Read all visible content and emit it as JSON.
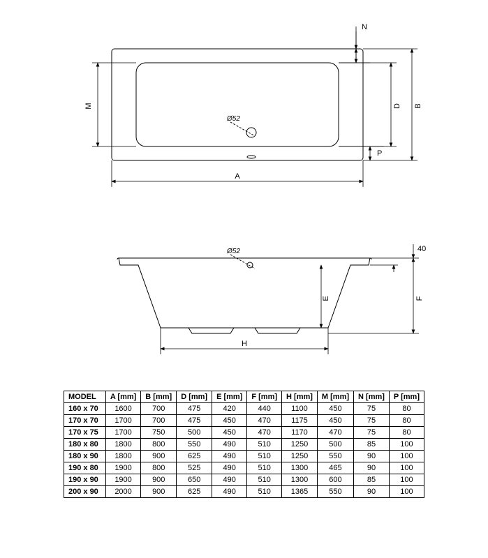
{
  "diagram": {
    "line_color": "#000000",
    "line_width": 1,
    "background_color": "#ffffff",
    "text_color": "#000000",
    "font_size_label": 11,
    "dim_labels": {
      "A": "A",
      "B": "B",
      "D": "D",
      "E": "E",
      "F": "F",
      "H": "H",
      "M": "M",
      "N": "N",
      "P": "P",
      "hole_dia": "Ø52",
      "top_offset": "40"
    }
  },
  "table": {
    "columns": [
      "MODEL",
      "A [mm]",
      "B [mm]",
      "D [mm]",
      "E [mm]",
      "F [mm]",
      "H [mm]",
      "M [mm]",
      "N [mm]",
      "P [mm]"
    ],
    "rows": [
      [
        "160 x 70",
        "1600",
        "700",
        "475",
        "420",
        "440",
        "1100",
        "450",
        "75",
        "80"
      ],
      [
        "170 x 70",
        "1700",
        "700",
        "475",
        "450",
        "470",
        "1175",
        "450",
        "75",
        "80"
      ],
      [
        "170 x 75",
        "1700",
        "750",
        "500",
        "450",
        "470",
        "1170",
        "470",
        "75",
        "80"
      ],
      [
        "180 x 80",
        "1800",
        "800",
        "550",
        "490",
        "510",
        "1250",
        "500",
        "85",
        "100"
      ],
      [
        "180 x 90",
        "1800",
        "900",
        "625",
        "490",
        "510",
        "1250",
        "550",
        "90",
        "100"
      ],
      [
        "190 x 80",
        "1900",
        "800",
        "525",
        "490",
        "510",
        "1300",
        "465",
        "90",
        "100"
      ],
      [
        "190 x 90",
        "1900",
        "900",
        "650",
        "490",
        "510",
        "1300",
        "600",
        "85",
        "100"
      ],
      [
        "200 x 90",
        "2000",
        "900",
        "625",
        "490",
        "510",
        "1365",
        "550",
        "90",
        "100"
      ]
    ]
  }
}
